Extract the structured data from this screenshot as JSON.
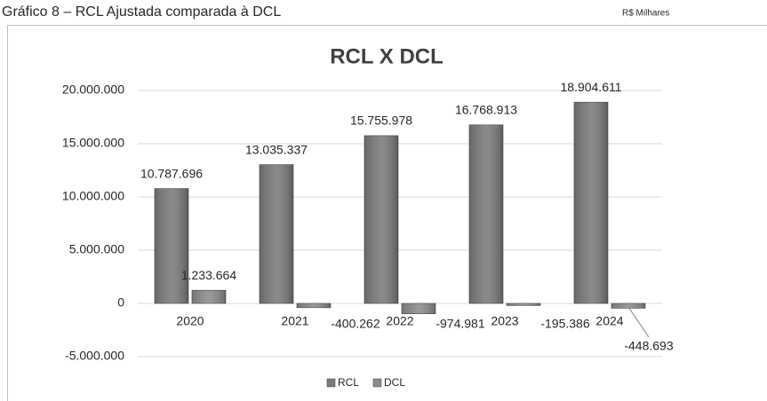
{
  "chart_data": {
    "type": "bar",
    "caption": "Gráfico 8 – RCL Ajustada comparada à DCL",
    "unit_note": "R$ Milhares",
    "title": "RCL X DCL",
    "categories": [
      "2020",
      "2021",
      "2022",
      "2023",
      "2024"
    ],
    "series": [
      {
        "name": "RCL",
        "color": "#7b7b7b",
        "values": [
          10787696,
          13035337,
          15755978,
          16768913,
          18904611
        ],
        "value_labels": [
          "10.787.696",
          "13.035.337",
          "15.755.978",
          "16.768.913",
          "18.904.611"
        ]
      },
      {
        "name": "DCL",
        "color": "#8c8c8c",
        "values": [
          1233664,
          -400262,
          -974981,
          -195386,
          -448693
        ],
        "value_labels": [
          "1.233.664",
          "-400.262",
          "-974.981",
          "-195.386",
          "-448.693"
        ]
      }
    ],
    "ylim": [
      -5000000,
      20000000
    ],
    "yticks": [
      {
        "value": -5000000,
        "label": "-5.000.000"
      },
      0,
      {
        "value": 5000000,
        "label": "5.000.000"
      },
      {
        "value": 10000000,
        "label": "10.000.000"
      },
      {
        "value": 15000000,
        "label": "15.000.000"
      },
      {
        "value": 20000000,
        "label": "20.000.000"
      }
    ],
    "grid": true,
    "legend": "bottom"
  }
}
